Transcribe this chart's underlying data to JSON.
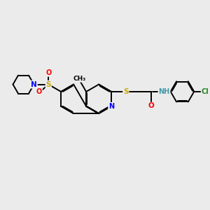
{
  "bg_color": "#ebebeb",
  "bond_color": "#000000",
  "atom_colors": {
    "N": "#0000ff",
    "S": "#ccaa00",
    "O": "#ff0000",
    "Cl": "#228822",
    "H": "#4499aa",
    "C": "#000000"
  },
  "lw": 1.4,
  "doff": 0.04
}
